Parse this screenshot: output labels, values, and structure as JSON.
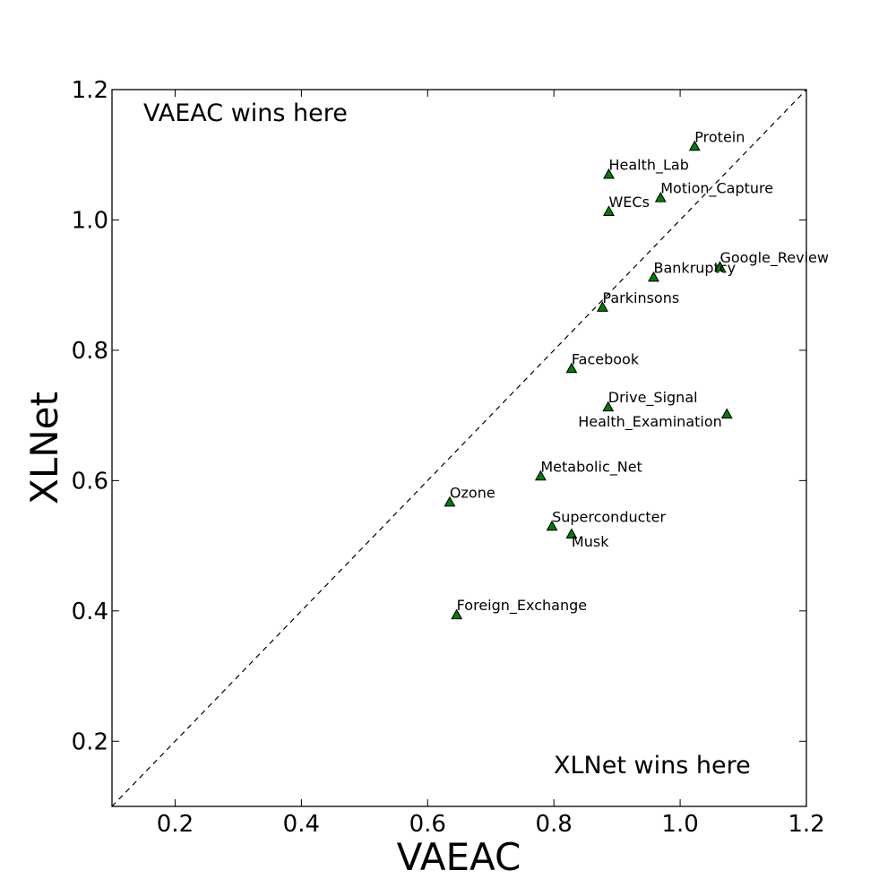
{
  "chart_data": {
    "type": "scatter",
    "title": "",
    "xlabel": "VAEAC",
    "ylabel": "XLNet",
    "xlim": [
      0.1,
      1.2
    ],
    "ylim": [
      0.1,
      1.2
    ],
    "xticks": [
      0.2,
      0.4,
      0.6,
      0.8,
      1.0,
      1.2
    ],
    "yticks": [
      0.2,
      0.4,
      0.6,
      0.8,
      1.0,
      1.2
    ],
    "tick_labels": [
      "0.2",
      "0.4",
      "0.6",
      "0.8",
      "1.0",
      "1.2"
    ],
    "diagonal": true,
    "marker": "triangle",
    "marker_color": "#007f00",
    "annotations": {
      "top_left": "VAEAC wins here",
      "bottom_right": "XLNet wins here"
    },
    "points": [
      {
        "label": "Protein",
        "x": 1.023,
        "y": 1.113
      },
      {
        "label": "Health_Lab",
        "x": 0.887,
        "y": 1.07
      },
      {
        "label": "Motion_Capture",
        "x": 0.969,
        "y": 1.034
      },
      {
        "label": "WECs",
        "x": 0.887,
        "y": 1.013
      },
      {
        "label": "Google_Review",
        "x": 1.063,
        "y": 0.928
      },
      {
        "label": "Bankruptcy",
        "x": 0.958,
        "y": 0.912
      },
      {
        "label": "Parkinsons",
        "x": 0.877,
        "y": 0.866
      },
      {
        "label": "Facebook",
        "x": 0.828,
        "y": 0.772
      },
      {
        "label": "Drive_Signal",
        "x": 0.886,
        "y": 0.713
      },
      {
        "label": "Health_Examination",
        "x": 1.074,
        "y": 0.702
      },
      {
        "label": "Metabolic_Net",
        "x": 0.779,
        "y": 0.607
      },
      {
        "label": "Ozone",
        "x": 0.635,
        "y": 0.567
      },
      {
        "label": "Superconducter",
        "x": 0.797,
        "y": 0.53
      },
      {
        "label": "Musk",
        "x": 0.828,
        "y": 0.518
      },
      {
        "label": "Foreign_Exchange",
        "x": 0.646,
        "y": 0.394
      }
    ]
  }
}
